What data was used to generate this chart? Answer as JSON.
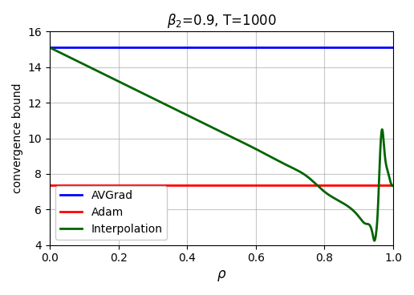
{
  "beta2": 0.9,
  "T": 1000,
  "avgrad_color": "#0000ff",
  "adam_color": "#ff0000",
  "interp_color": "#006400",
  "title": "$\\beta_2$=0.9, T=1000",
  "xlabel": "$\\rho$",
  "ylabel": "convergence bound",
  "xlim": [
    0.0,
    1.0
  ],
  "ylim": [
    4.0,
    16.0
  ],
  "avgrad_value": 15.1,
  "adam_value": 7.35,
  "legend_labels": [
    "AVGrad",
    "Adam",
    "Interpolation"
  ],
  "linewidth": 2.0,
  "rho_keypoints": [
    0.0,
    0.1,
    0.2,
    0.3,
    0.4,
    0.5,
    0.6,
    0.7,
    0.75,
    0.8,
    0.85,
    0.9,
    0.92,
    0.94,
    0.945,
    0.95,
    0.955,
    0.963,
    0.968,
    0.975,
    0.985,
    0.993,
    1.0
  ],
  "bound_keypoints": [
    15.1,
    14.15,
    13.2,
    12.25,
    11.3,
    10.35,
    9.4,
    8.4,
    7.85,
    7.0,
    6.4,
    5.6,
    5.2,
    4.65,
    4.25,
    4.6,
    5.8,
    9.5,
    10.5,
    9.2,
    8.1,
    7.5,
    7.35
  ]
}
